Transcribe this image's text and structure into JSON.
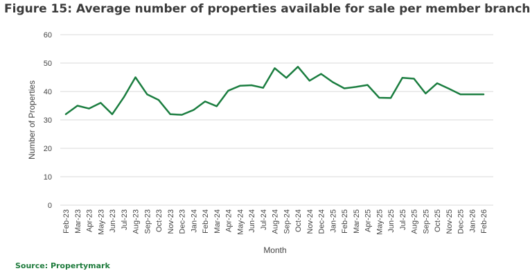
{
  "figure": {
    "title": "Figure 15: Average number of properties available for sale per member branch",
    "source": "Source: Propertymark"
  },
  "colors": {
    "series": "#1a7d3f",
    "grid": "#d9d9d9",
    "title": "#3b3b3b",
    "source": "#1e7b3c"
  },
  "chart_data": {
    "type": "line",
    "title": "",
    "xlabel": "Month",
    "ylabel": "Number of Properties",
    "ylim": [
      0,
      60
    ],
    "yticks": [
      0,
      10,
      20,
      30,
      40,
      50,
      60
    ],
    "grid": "horizontal",
    "legend": "none",
    "categories": [
      "Feb-23",
      "Mar-23",
      "Apr-23",
      "May-23",
      "Jun-23",
      "Jul-23",
      "Aug-23",
      "Sep-23",
      "Oct-23",
      "Nov-23",
      "Dec-23",
      "Jan-24",
      "Feb-24",
      "Mar-24",
      "Apr-24",
      "May-24",
      "Jun-24",
      "Jul-24",
      "Aug-24",
      "Sep-24",
      "Oct-24",
      "Nov-24",
      "Dec-24",
      "Jan-25",
      "Feb-25",
      "Mar-25",
      "Apr-25",
      "May-25",
      "Jun-25",
      "Jul-25",
      "Aug-25",
      "Sep-25",
      "Oct-25",
      "Nov-25",
      "Dec-25",
      "Jan-26",
      "Feb-26"
    ],
    "series": [
      {
        "values": [
          32,
          35,
          34,
          36,
          32,
          38,
          45,
          39,
          37,
          32,
          31.8,
          33.5,
          36.5,
          34.8,
          40.3,
          42,
          42.2,
          41.3,
          48.2,
          44.8,
          48.7,
          43.8,
          46.2,
          43.3,
          41.1,
          41.6,
          42.3,
          37.8,
          37.7,
          44.8,
          44.5,
          39.3,
          42.9,
          41,
          39,
          39,
          39
        ]
      }
    ]
  }
}
